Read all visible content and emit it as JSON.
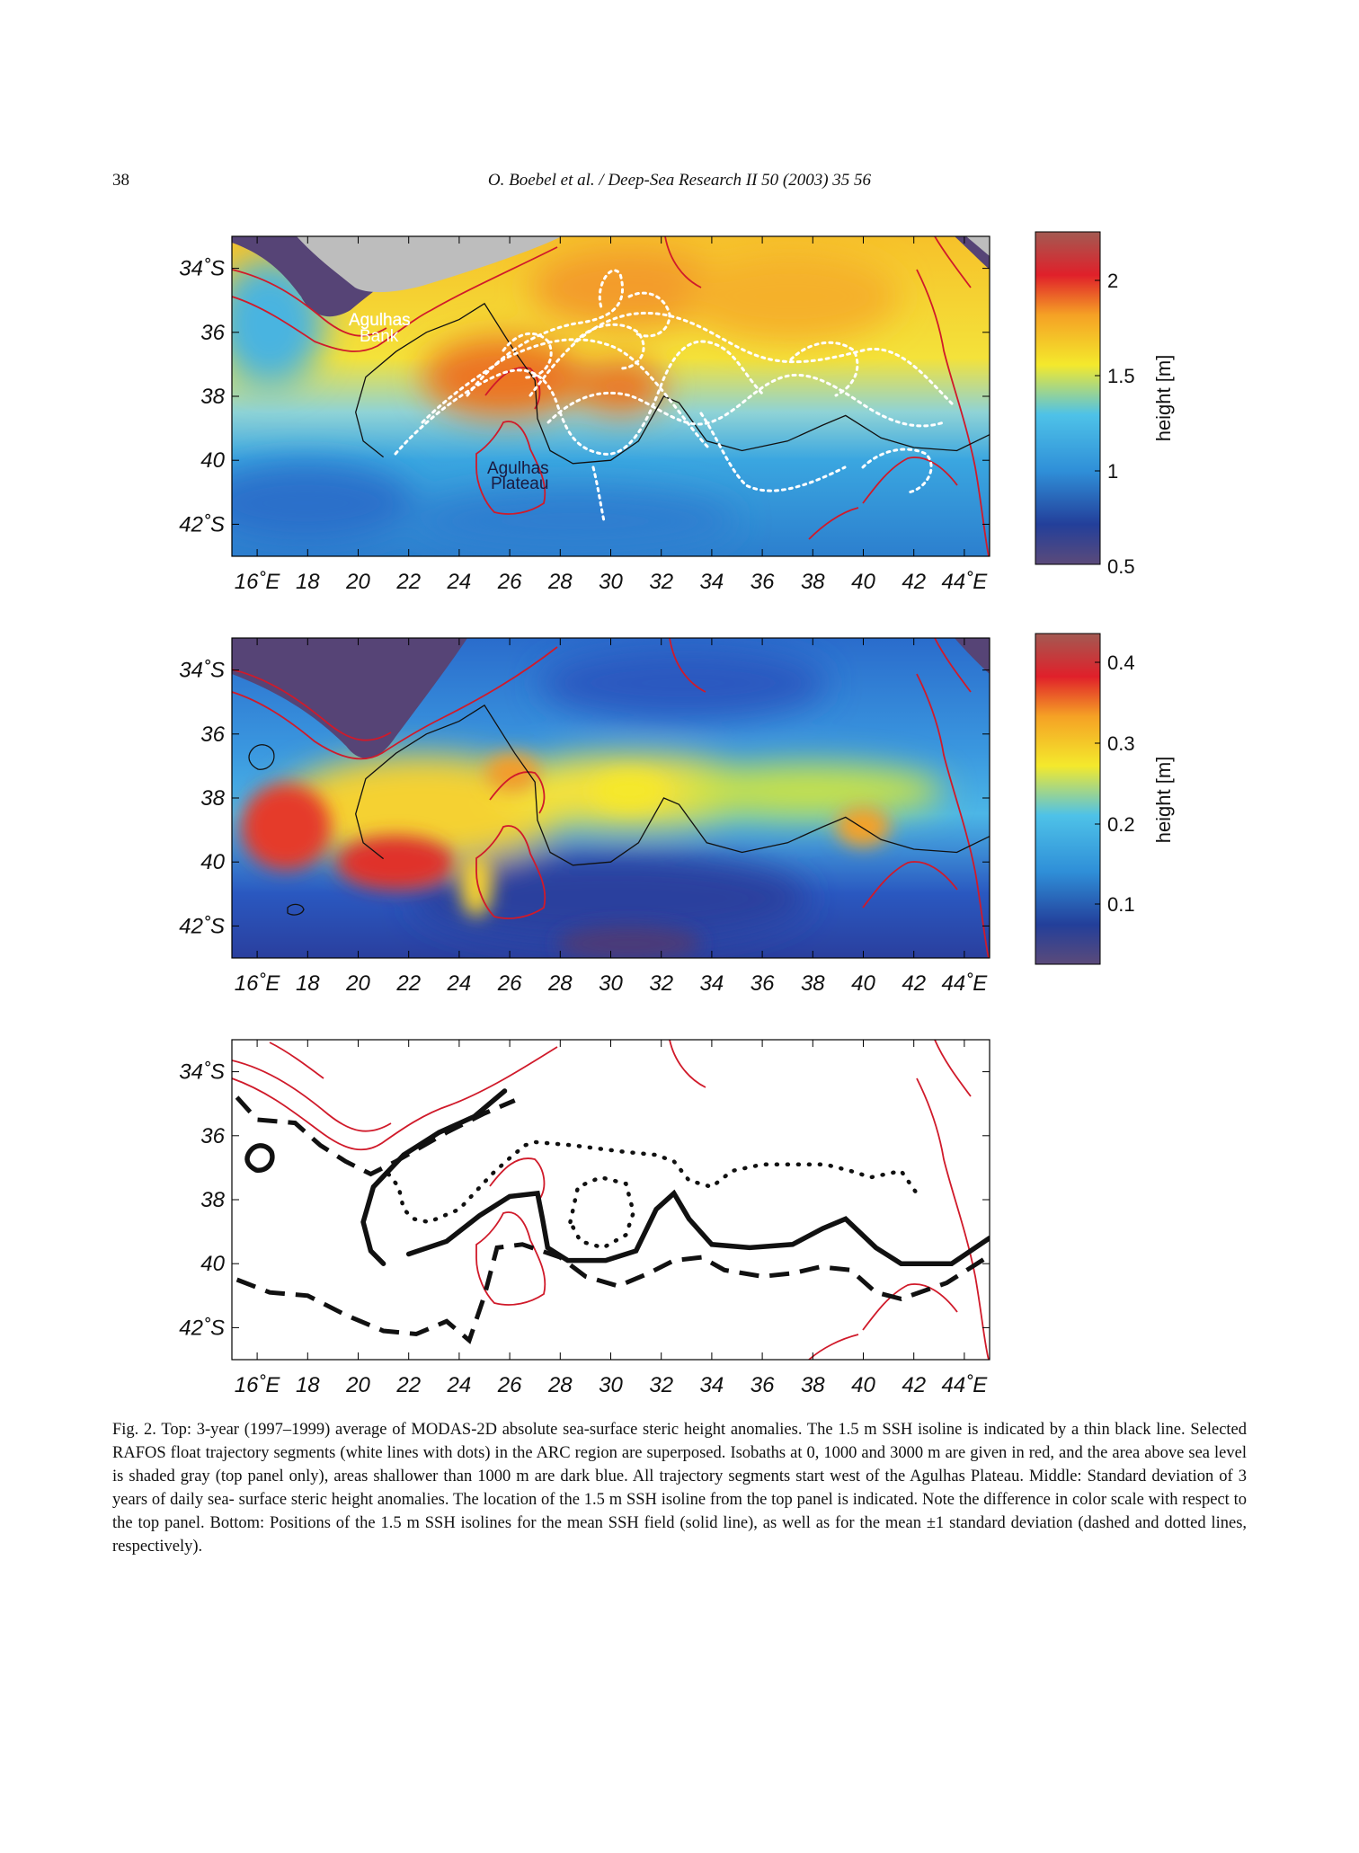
{
  "header": {
    "page_number": "38",
    "running_title": "O. Boebel et al. / Deep-Sea Research II 50 (2003) 35 56"
  },
  "axes": {
    "x_ticks": [
      "16˚E",
      "18",
      "20",
      "22",
      "24",
      "26",
      "28",
      "30",
      "32",
      "34",
      "36",
      "38",
      "40",
      "42",
      "44˚E"
    ],
    "y_ticks": [
      "34˚S",
      "36",
      "38",
      "40",
      "42˚S"
    ]
  },
  "panels": {
    "top": {
      "labels": {
        "bank": [
          "Agulhas",
          "Bank"
        ],
        "plateau": [
          "Agulhas",
          "Plateau"
        ]
      },
      "colorbar": {
        "label": "height [m]",
        "ticks": [
          "2",
          "1.5",
          "1",
          "0.5"
        ],
        "range": [
          0.5,
          2.25
        ]
      }
    },
    "middle": {
      "colorbar": {
        "label": "height [m]",
        "ticks": [
          "0.4",
          "0.3",
          "0.2",
          "0.1"
        ],
        "range": [
          0.02,
          0.43
        ]
      }
    },
    "bottom": {
      "legend_styles": [
        "mean SSH (solid)",
        "mean − 1 std (dashed)",
        "mean + 1 std (dotted)"
      ]
    }
  },
  "colors": {
    "isobath": "#d01a2a",
    "land": "#bdbdbd",
    "shallow": "#564476",
    "isoline": "#111111",
    "trajectory": "#ffffff"
  },
  "chart_data": [
    {
      "type": "heatmap",
      "panel": "top",
      "xlim": [
        15,
        45
      ],
      "ylim": [
        -43,
        -33
      ],
      "colorscale_label": "height [m]",
      "isoline_1p5m": [
        [
          21,
          -39.9
        ],
        [
          20.2,
          -39.4
        ],
        [
          19.9,
          -38.5
        ],
        [
          20.3,
          -37.4
        ],
        [
          21.5,
          -36.6
        ],
        [
          22.7,
          -36
        ],
        [
          24,
          -35.6
        ],
        [
          25,
          -35.1
        ],
        [
          26.2,
          -36.6
        ],
        [
          27,
          -37.5
        ],
        [
          27.1,
          -38.7
        ],
        [
          27.6,
          -39.7
        ],
        [
          28.5,
          -40.1
        ],
        [
          30,
          -40
        ],
        [
          31.1,
          -39.4
        ],
        [
          32.1,
          -38
        ],
        [
          32.7,
          -38.2
        ],
        [
          33.8,
          -39.4
        ],
        [
          35.2,
          -39.7
        ],
        [
          37,
          -39.4
        ],
        [
          38.4,
          -38.9
        ],
        [
          39.3,
          -38.6
        ],
        [
          40.7,
          -39.3
        ],
        [
          42,
          -39.6
        ],
        [
          43.7,
          -39.7
        ],
        [
          45,
          -39.2
        ]
      ],
      "trajectory_region": {
        "lon": [
          21,
          43
        ],
        "lat": [
          -41.5,
          -35.2
        ]
      }
    },
    {
      "type": "heatmap",
      "panel": "middle",
      "xlim": [
        15,
        45
      ],
      "ylim": [
        -43,
        -33
      ],
      "colorscale_label": "height [m]",
      "hotspots": [
        {
          "lon": 17.7,
          "lat": -38.7,
          "value": 0.35
        },
        {
          "lon": 21.6,
          "lat": -39.6,
          "value": 0.36
        },
        {
          "lon": 26.2,
          "lat": -37.7,
          "value": 0.26
        },
        {
          "lon": 31.5,
          "lat": -38.1,
          "value": 0.24
        },
        {
          "lon": 39.3,
          "lat": -38.7,
          "value": 0.27
        }
      ]
    },
    {
      "type": "line",
      "panel": "bottom",
      "xlim": [
        15,
        45
      ],
      "ylim": [
        -43,
        -33
      ],
      "series": [
        {
          "style": "solid",
          "points": [
            [
              21,
              -40
            ],
            [
              20.5,
              -39.6
            ],
            [
              20.2,
              -38.7
            ],
            [
              20.6,
              -37.6
            ],
            [
              21.8,
              -36.6
            ],
            [
              23.2,
              -35.9
            ],
            [
              24.6,
              -35.4
            ],
            [
              25.8,
              -34.6
            ]
          ]
        },
        {
          "style": "solid",
          "points": [
            [
              22,
              -39.7
            ],
            [
              23.5,
              -39.3
            ],
            [
              24.8,
              -38.5
            ],
            [
              26,
              -37.9
            ],
            [
              27.1,
              -37.8
            ],
            [
              27.3,
              -38.6
            ],
            [
              27.5,
              -39.5
            ],
            [
              28.3,
              -39.9
            ],
            [
              29.8,
              -39.9
            ],
            [
              31,
              -39.6
            ],
            [
              31.8,
              -38.3
            ],
            [
              32.5,
              -37.8
            ],
            [
              33.1,
              -38.6
            ],
            [
              34,
              -39.4
            ],
            [
              35.5,
              -39.5
            ],
            [
              37.2,
              -39.4
            ],
            [
              38.4,
              -38.9
            ],
            [
              39.3,
              -38.6
            ],
            [
              40.5,
              -39.5
            ],
            [
              41.5,
              -40
            ],
            [
              43.5,
              -40
            ],
            [
              45,
              -39.2
            ]
          ]
        },
        {
          "style": "dashed",
          "points": [
            [
              15.2,
              -34.8
            ],
            [
              16,
              -35.5
            ],
            [
              17.5,
              -35.6
            ],
            [
              18.5,
              -36.3
            ],
            [
              19.5,
              -36.8
            ],
            [
              20.5,
              -37.2
            ],
            [
              21.5,
              -36.8
            ],
            [
              23.5,
              -35.9
            ],
            [
              25,
              -35.3
            ],
            [
              26.2,
              -34.9
            ]
          ]
        },
        {
          "style": "dashed",
          "points": [
            [
              15.2,
              -40.5
            ],
            [
              16.5,
              -40.9
            ],
            [
              18,
              -41
            ],
            [
              19.5,
              -41.6
            ],
            [
              21,
              -42.1
            ],
            [
              22.3,
              -42.2
            ],
            [
              23.5,
              -41.8
            ],
            [
              24.4,
              -42.4
            ],
            [
              25,
              -41
            ],
            [
              25.5,
              -39.5
            ],
            [
              26.5,
              -39.4
            ],
            [
              28,
              -39.8
            ],
            [
              29,
              -40.4
            ],
            [
              30.3,
              -40.7
            ],
            [
              31.5,
              -40.3
            ],
            [
              32.5,
              -39.9
            ],
            [
              33.6,
              -39.8
            ],
            [
              34.5,
              -40.2
            ],
            [
              36,
              -40.4
            ],
            [
              37.2,
              -40.3
            ],
            [
              38.3,
              -40.1
            ],
            [
              39.5,
              -40.2
            ],
            [
              40.5,
              -40.9
            ],
            [
              41.5,
              -41.1
            ],
            [
              43.3,
              -40.6
            ],
            [
              44.9,
              -39.8
            ]
          ]
        },
        {
          "style": "dotted",
          "points": [
            [
              21.2,
              -37.2
            ],
            [
              21.6,
              -37.6
            ],
            [
              21.8,
              -38.3
            ],
            [
              22.2,
              -38.6
            ],
            [
              22.8,
              -38.7
            ],
            [
              24,
              -38.3
            ],
            [
              25.3,
              -37.2
            ],
            [
              26,
              -36.7
            ],
            [
              26.6,
              -36.3
            ],
            [
              27,
              -36.2
            ],
            [
              28.5,
              -36.3
            ],
            [
              30.5,
              -36.5
            ],
            [
              31.8,
              -36.6
            ],
            [
              32.5,
              -36.8
            ],
            [
              33.1,
              -37.4
            ],
            [
              34,
              -37.6
            ],
            [
              34.8,
              -37.1
            ],
            [
              36,
              -36.9
            ],
            [
              37.5,
              -36.9
            ],
            [
              38.5,
              -36.9
            ],
            [
              39.5,
              -37.1
            ],
            [
              40.3,
              -37.3
            ],
            [
              41.5,
              -37.1
            ],
            [
              42.2,
              -37.9
            ]
          ]
        },
        {
          "style": "dotted",
          "points": [
            [
              28.4,
              -38.7
            ],
            [
              28.7,
              -37.6
            ],
            [
              29.6,
              -37.3
            ],
            [
              30.6,
              -37.5
            ],
            [
              30.9,
              -38.4
            ],
            [
              30.6,
              -39.1
            ],
            [
              29.7,
              -39.5
            ],
            [
              28.8,
              -39.3
            ],
            [
              28.4,
              -38.7
            ]
          ]
        }
      ]
    }
  ],
  "caption": {
    "label": "Fig. 2.",
    "lines": [
      "Top: 3-year (1997–1999) average of MODAS-2D absolute sea-surface steric height anomalies. The 1.5 m SSH isoline is",
      "indicated by a thin black line. Selected RAFOS float trajectory segments (white lines with dots) in the ARC region are superposed.",
      "Isobaths at 0, 1000 and 3000 m are given in red, and the area above sea level is shaded gray (top panel only), areas shallower than",
      "1000 m are dark blue. All trajectory segments start west of the Agulhas Plateau. Middle: Standard deviation of 3 years of daily sea-",
      "surface steric height anomalies. The location of the 1.5 m SSH isoline from the top panel is indicated. Note the difference in color scale",
      "with respect to the top panel. Bottom: Positions of the 1.5 m SSH isolines for the mean SSH field (solid line), as well as for the mean",
      "±1 standard deviation (dashed and dotted lines, respectively)."
    ]
  }
}
